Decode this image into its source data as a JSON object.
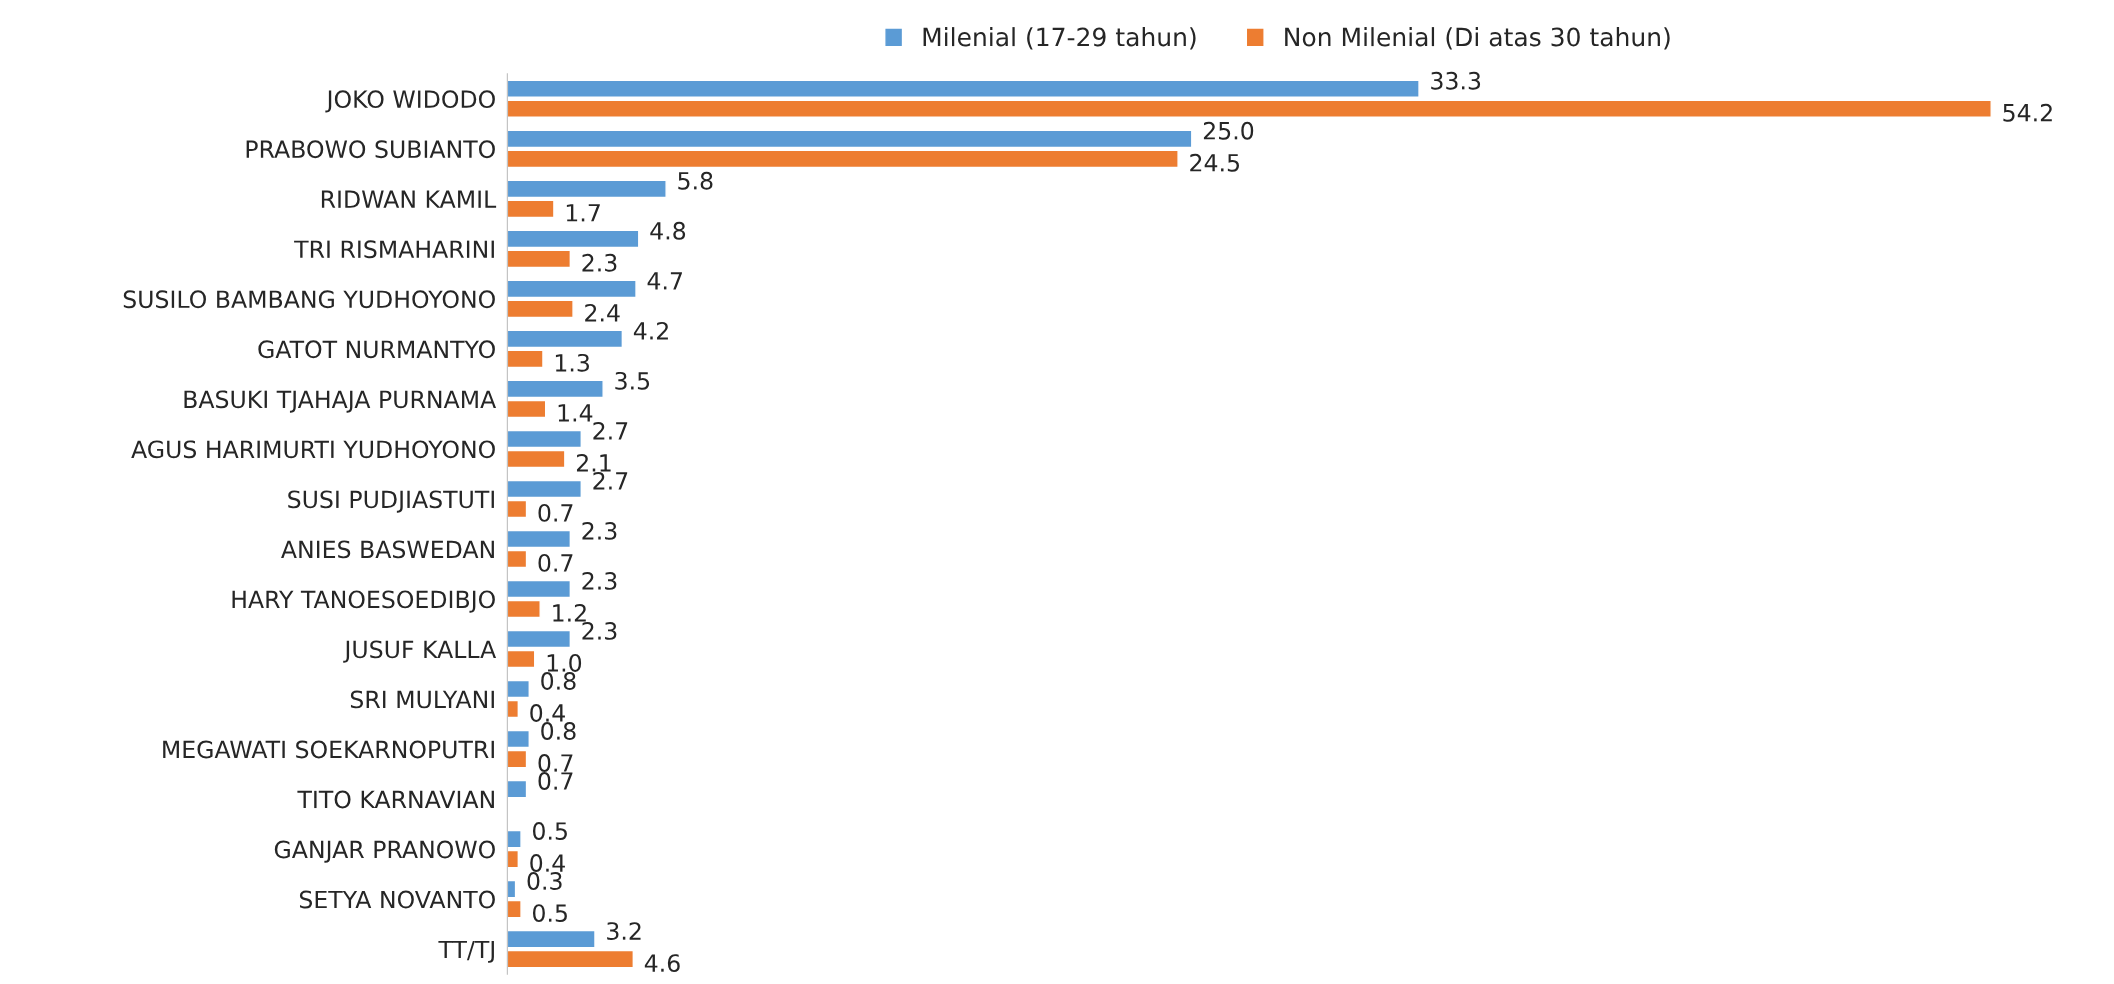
{
  "chart_data": {
    "type": "bar",
    "orientation": "horizontal",
    "data_labels": true,
    "legend": "top",
    "grid": false,
    "categories": [
      "JOKO WIDODO",
      "PRABOWO SUBIANTO",
      "RIDWAN KAMIL",
      "TRI RISMAHARINI",
      "SUSILO BAMBANG YUDHOYONO",
      "GATOT NURMANTYO",
      "BASUKI TJAHAJA PURNAMA",
      "AGUS HARIMURTI YUDHOYONO",
      "SUSI PUDJIASTUTI",
      "ANIES BASWEDAN",
      "HARY TANOESOEDIBJO",
      "JUSUF KALLA",
      "SRI MULYANI",
      "MEGAWATI SOEKARNOPUTRI",
      "TITO KARNAVIAN",
      "GANJAR PRANOWO",
      "SETYA NOVANTO",
      "TT/TJ"
    ],
    "series": [
      {
        "name": "Milenial (17-29 tahun)",
        "color": "#5b9bd5",
        "values": [
          33.3,
          25.0,
          5.8,
          4.8,
          4.7,
          4.2,
          3.5,
          2.7,
          2.7,
          2.3,
          2.3,
          2.3,
          0.8,
          0.8,
          0.7,
          0.5,
          0.3,
          3.2
        ],
        "value_labels": [
          "33.3",
          "25.0",
          "5.8",
          "4.8",
          "4.7",
          "4.2",
          "3.5",
          "2.7",
          "2.7",
          "2.3",
          "2.3",
          "2.3",
          "0.8",
          "0.8",
          "0.7",
          "0.5",
          "0.3",
          "3.2"
        ]
      },
      {
        "name": "Non Milenial (Di atas 30 tahun)",
        "color": "#ed7d31",
        "values": [
          54.2,
          24.5,
          1.7,
          2.3,
          2.4,
          1.3,
          1.4,
          2.1,
          0.7,
          0.7,
          1.2,
          1.0,
          0.4,
          0.7,
          null,
          0.4,
          0.5,
          4.6
        ],
        "value_labels": [
          "54.2",
          "24.5",
          "1.7",
          "2.3",
          "2.4",
          "1.3",
          "1.4",
          "2.1",
          "0.7",
          "0.7",
          "1.2",
          "1.0",
          "0.4",
          "0.7",
          null,
          "0.4",
          "0.5",
          "4.6"
        ]
      }
    ]
  }
}
